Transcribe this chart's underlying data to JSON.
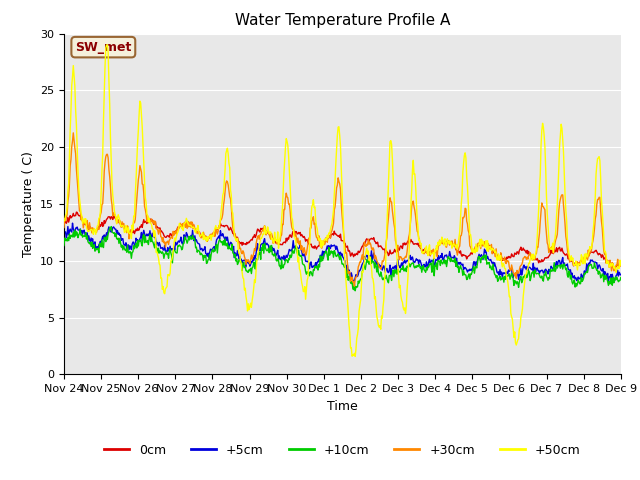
{
  "title": "Water Temperature Profile A",
  "ylabel": "Temperature ( C)",
  "xlabel": "Time",
  "annotation": "SW_met",
  "ylim": [
    0,
    30
  ],
  "yticks": [
    0,
    5,
    10,
    15,
    20,
    25,
    30
  ],
  "xtick_labels": [
    "Nov 24",
    "Nov 25",
    "Nov 26",
    "Nov 27",
    "Nov 28",
    "Nov 29",
    "Nov 30",
    "Dec 1",
    "Dec 2",
    "Dec 3",
    "Dec 4",
    "Dec 5",
    "Dec 6",
    "Dec 7",
    "Dec 8",
    "Dec 9"
  ],
  "n_points": 720,
  "series_colors": {
    "0cm": "#dd0000",
    "+5cm": "#0000dd",
    "+10cm": "#00cc00",
    "+30cm": "#ff8800",
    "+50cm": "#ffff00"
  },
  "line_width": 1.0,
  "fig_bg_color": "#ffffff",
  "plot_bg_color": "#e8e8e8",
  "grid_color": "#ffffff",
  "title_fontsize": 11,
  "axis_label_fontsize": 9,
  "tick_fontsize": 8,
  "annotation_fontsize": 9,
  "annotation_color": "#8b0000",
  "annotation_bg": "#f5f0dc",
  "annotation_edge": "#996633"
}
